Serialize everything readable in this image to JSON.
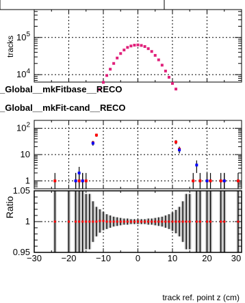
{
  "chart_data": [
    {
      "type": "scatter",
      "ylabel": "tracks",
      "log_y": true,
      "xlim": [
        -30,
        30
      ],
      "ylim_exp": [
        3.8,
        5.75
      ],
      "y_ticks": [
        {
          "exp": 4,
          "base": "10",
          "sup": "4"
        },
        {
          "exp": 5,
          "base": "10",
          "sup": "5"
        }
      ],
      "grid": true,
      "marker_color": "#e0207a",
      "x": [
        -11,
        -10,
        -9,
        -8,
        -7,
        -6,
        -5,
        -4,
        -3,
        -2,
        -1,
        0,
        1,
        2,
        3,
        4,
        5,
        6,
        7,
        8,
        9,
        10,
        11
      ],
      "y": [
        4000,
        6200,
        9500,
        14000,
        20000,
        28000,
        37000,
        46000,
        54000,
        59000,
        62000,
        63000,
        61000,
        57000,
        50000,
        42000,
        33000,
        25000,
        18000,
        12500,
        8500,
        5800,
        4100
      ]
    },
    {
      "type": "scatter",
      "log_y": true,
      "xlim": [
        -30,
        30
      ],
      "ylim_exp": [
        -0.3,
        2.3
      ],
      "y_ticks": [
        {
          "exp": 0,
          "base": "1",
          "sup": ""
        },
        {
          "exp": 1,
          "base": "10",
          "sup": ""
        },
        {
          "exp": 2,
          "base": "10",
          "sup": "2"
        }
      ],
      "grid": true,
      "legend": [
        {
          "label": "_Global__mkFitbase__RECO",
          "color": "#0000ff"
        },
        {
          "label": "_Global__mkFit-cand__RECO",
          "color": "#ff0000"
        }
      ],
      "series": [
        {
          "name": "_Global__mkFit-cand__RECO",
          "color": "#ff0000",
          "x": [
            -24,
            -18,
            -17,
            -16,
            -15,
            -13,
            -12,
            11,
            12,
            16,
            18,
            20,
            21,
            24,
            25,
            29
          ],
          "y": [
            1,
            1,
            1,
            1,
            1,
            28,
            55,
            30,
            16,
            1,
            1,
            1,
            1,
            1,
            1,
            1
          ]
        },
        {
          "name": "_Global__mkFitbase__RECO",
          "color": "#0000ff",
          "x": [
            -18,
            -17,
            -16,
            -13,
            12,
            17,
            20,
            25
          ],
          "y": [
            1,
            2,
            1,
            27,
            15,
            4,
            1,
            1
          ]
        }
      ]
    },
    {
      "type": "scatter",
      "ylabel": "Ratio",
      "xlabel": "track ref. point z (cm)",
      "xlim": [
        -30,
        30
      ],
      "ylim": [
        0.95,
        1.05
      ],
      "y_ticks": [
        "0.95",
        "1",
        "1.05"
      ],
      "x_ticks": [
        "−30",
        "−20",
        "−10",
        "0",
        "10",
        "20",
        "30"
      ],
      "grid": true,
      "ratio_points": [
        {
          "x": -24,
          "y": 1,
          "e": 0.06
        },
        {
          "x": -20,
          "y": 1,
          "e": 0.06
        },
        {
          "x": -18,
          "y": 1,
          "e": 0.06
        },
        {
          "x": -17,
          "y": 1,
          "e": 0.06
        },
        {
          "x": -16,
          "y": 1,
          "e": 0.06
        },
        {
          "x": -15,
          "y": 1,
          "e": 0.045
        },
        {
          "x": -14,
          "y": 1,
          "e": 0.045
        },
        {
          "x": -13,
          "y": 1,
          "e": 0.033
        },
        {
          "x": -12,
          "y": 1,
          "e": 0.024
        },
        {
          "x": -11,
          "y": 1.001,
          "e": 0.019
        },
        {
          "x": -10,
          "y": 1.001,
          "e": 0.015
        },
        {
          "x": -9,
          "y": 1,
          "e": 0.012
        },
        {
          "x": -8,
          "y": 1,
          "e": 0.01
        },
        {
          "x": -7,
          "y": 1,
          "e": 0.008
        },
        {
          "x": -6,
          "y": 1,
          "e": 0.007
        },
        {
          "x": -5,
          "y": 1,
          "e": 0.006
        },
        {
          "x": -4,
          "y": 1,
          "e": 0.005
        },
        {
          "x": -3,
          "y": 1,
          "e": 0.005
        },
        {
          "x": -2,
          "y": 1,
          "e": 0.004
        },
        {
          "x": -1,
          "y": 1,
          "e": 0.004
        },
        {
          "x": 0,
          "y": 1,
          "e": 0.004
        },
        {
          "x": 1,
          "y": 1,
          "e": 0.004
        },
        {
          "x": 2,
          "y": 1,
          "e": 0.004
        },
        {
          "x": 3,
          "y": 1,
          "e": 0.005
        },
        {
          "x": 4,
          "y": 1,
          "e": 0.005
        },
        {
          "x": 5,
          "y": 1,
          "e": 0.006
        },
        {
          "x": 6,
          "y": 1,
          "e": 0.007
        },
        {
          "x": 7,
          "y": 1,
          "e": 0.008
        },
        {
          "x": 8,
          "y": 1,
          "e": 0.01
        },
        {
          "x": 9,
          "y": 1,
          "e": 0.012
        },
        {
          "x": 10,
          "y": 1,
          "e": 0.015
        },
        {
          "x": 11,
          "y": 1,
          "e": 0.019
        },
        {
          "x": 12,
          "y": 1,
          "e": 0.024
        },
        {
          "x": 13,
          "y": 1,
          "e": 0.033
        },
        {
          "x": 14,
          "y": 1,
          "e": 0.045
        },
        {
          "x": 15,
          "y": 1,
          "e": 0.045
        },
        {
          "x": 17,
          "y": 1,
          "e": 0.06
        },
        {
          "x": 18,
          "y": 1,
          "e": 0.06
        },
        {
          "x": 20,
          "y": 1,
          "e": 0.06
        },
        {
          "x": 21,
          "y": 1,
          "e": 0.06
        },
        {
          "x": 24,
          "y": 1,
          "e": 0.06
        },
        {
          "x": 25,
          "y": 1,
          "e": 0.06
        },
        {
          "x": 29,
          "y": 1,
          "e": 0.06
        }
      ]
    }
  ]
}
